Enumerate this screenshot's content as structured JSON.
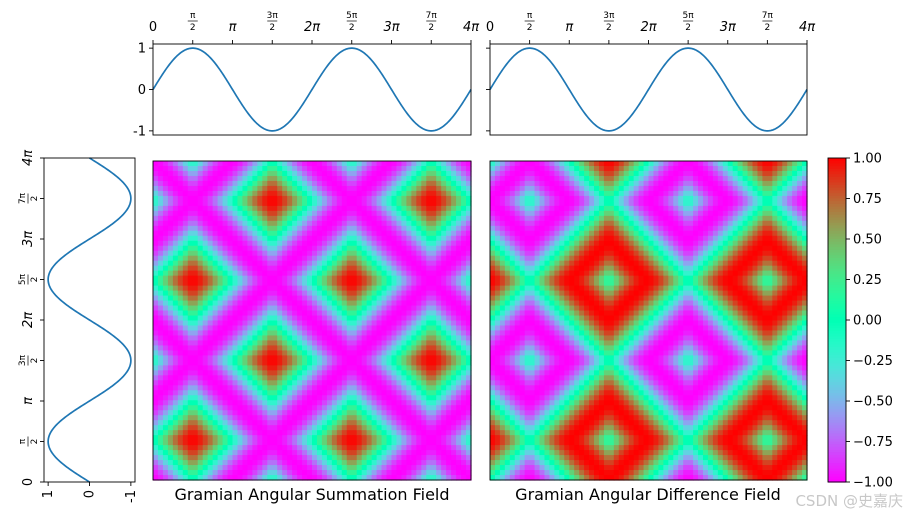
{
  "chart_data": [
    {
      "type": "line",
      "name": "top-left-series",
      "function": "sin(x)",
      "x_range": [
        0,
        12.566
      ],
      "ylim": [
        -1.1,
        1.1
      ],
      "y_ticks": [
        {
          "value": 1,
          "label": "1"
        },
        {
          "value": 0,
          "label": "0"
        },
        {
          "value": -1,
          "label": "-1"
        }
      ],
      "x_ticks_position": "top"
    },
    {
      "type": "line",
      "name": "top-right-series",
      "function": "sin(x)",
      "x_range": [
        0,
        12.566
      ],
      "ylim": [
        -1.1,
        1.1
      ],
      "x_ticks_position": "top"
    },
    {
      "type": "line",
      "name": "left-vertical-series",
      "function": "sin(t) plotted horizontally against t on vertical axis",
      "x_ticks": [
        {
          "value": 1,
          "label": "1"
        },
        {
          "value": 0,
          "label": "0"
        },
        {
          "value": -1,
          "label": "-1"
        }
      ],
      "xlim": [
        1.1,
        -1.1
      ],
      "ylim": [
        0,
        12.566
      ]
    },
    {
      "type": "heatmap",
      "name": "gasf",
      "title": "Gramian Angular Summation Field",
      "formula": "cos(phi_i + phi_j), phi = arccos(sin(t))",
      "resolution": 64
    },
    {
      "type": "heatmap",
      "name": "gadf",
      "title": "Gramian Angular Difference Field",
      "formula": "sin(phi_i - phi_j), phi = arccos(sin(t))",
      "resolution": 64
    }
  ],
  "pi_ticks": [
    {
      "k": 0,
      "frac": false,
      "label": "0"
    },
    {
      "k": 1,
      "frac": true,
      "num": "π",
      "den": "2"
    },
    {
      "k": 2,
      "frac": false,
      "label": "π"
    },
    {
      "k": 3,
      "frac": true,
      "num": "3π",
      "den": "2"
    },
    {
      "k": 4,
      "frac": false,
      "label": "2π"
    },
    {
      "k": 5,
      "frac": true,
      "num": "5π",
      "den": "2"
    },
    {
      "k": 6,
      "frac": false,
      "label": "3π"
    },
    {
      "k": 7,
      "frac": true,
      "num": "7π",
      "den": "2"
    },
    {
      "k": 8,
      "frac": false,
      "label": "4π"
    }
  ],
  "colorbar": {
    "colormap": "rainbow",
    "range": [
      -1,
      1
    ],
    "ticks": [
      {
        "value": 1.0,
        "label": "1.00"
      },
      {
        "value": 0.75,
        "label": "0.75"
      },
      {
        "value": 0.5,
        "label": "0.50"
      },
      {
        "value": 0.25,
        "label": "0.25"
      },
      {
        "value": 0.0,
        "label": "0.00"
      },
      {
        "value": -0.25,
        "label": "−0.25"
      },
      {
        "value": -0.5,
        "label": "−0.50"
      },
      {
        "value": -0.75,
        "label": "−0.75"
      },
      {
        "value": -1.0,
        "label": "−1.00"
      }
    ]
  },
  "line_color": "#1f77b4",
  "watermark": "CSDN @史嘉庆"
}
